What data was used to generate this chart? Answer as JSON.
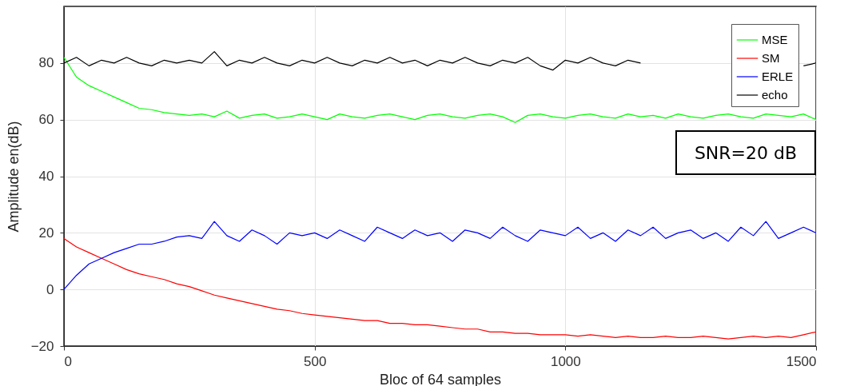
{
  "chart_data": {
    "type": "line",
    "xlabel": "Bloc of 64 samples",
    "ylabel": "Amplitude en(dB)",
    "x": [
      0,
      25,
      50,
      75,
      100,
      125,
      150,
      175,
      200,
      225,
      250,
      275,
      300,
      325,
      350,
      375,
      400,
      425,
      450,
      475,
      500,
      525,
      550,
      575,
      600,
      625,
      650,
      675,
      700,
      725,
      750,
      775,
      800,
      825,
      850,
      875,
      900,
      925,
      950,
      975,
      1000,
      1025,
      1050,
      1075,
      1100,
      1125,
      1150,
      1175,
      1200,
      1225,
      1250,
      1275,
      1300,
      1325,
      1350,
      1375,
      1400,
      1425,
      1450,
      1475,
      1500
    ],
    "series": [
      {
        "name": "MSE",
        "color": "#00ff00",
        "values": [
          82,
          75,
          72,
          70,
          68,
          66,
          64,
          63.5,
          62.5,
          62,
          61.5,
          62,
          61,
          63,
          60.5,
          61.5,
          62,
          60.5,
          61,
          62,
          61,
          60,
          62,
          61,
          60.5,
          61.5,
          62,
          61,
          60,
          61.5,
          62,
          61,
          60.5,
          61.5,
          62,
          61,
          59,
          61.5,
          62,
          61,
          60.5,
          61.5,
          62,
          61,
          60.5,
          62,
          61,
          61.5,
          60.5,
          62,
          61,
          60.5,
          61.5,
          62,
          61,
          60.5,
          62,
          61.5,
          61,
          62,
          60
        ]
      },
      {
        "name": "SM",
        "color": "#ff0000",
        "values": [
          18,
          15,
          13,
          11,
          9,
          7,
          5.5,
          4.5,
          3.5,
          2,
          1,
          -0.5,
          -2,
          -3,
          -4,
          -5,
          -6,
          -7,
          -7.5,
          -8.5,
          -9,
          -9.5,
          -10,
          -10.5,
          -11,
          -11,
          -12,
          -12,
          -12.5,
          -12.5,
          -13,
          -13.5,
          -14,
          -14,
          -15,
          -15,
          -15.5,
          -15.5,
          -16,
          -16,
          -16,
          -16.5,
          -16,
          -16.5,
          -17,
          -16.5,
          -17,
          -17,
          -16.5,
          -17,
          -17,
          -16.5,
          -17,
          -17.5,
          -17,
          -16.5,
          -17,
          -16.5,
          -17,
          -16,
          -15
        ]
      },
      {
        "name": "ERLE",
        "color": "#0000ff",
        "values": [
          0,
          5,
          9,
          11,
          13,
          14.5,
          16,
          16,
          17,
          18.5,
          19,
          18,
          24,
          19,
          17,
          21,
          19,
          16,
          20,
          19,
          20,
          18,
          21,
          19,
          17,
          22,
          20,
          18,
          21,
          19,
          20,
          17,
          21,
          20,
          18,
          22,
          19,
          17,
          21,
          20,
          19,
          22,
          18,
          20,
          17,
          21,
          19,
          22,
          18,
          20,
          21,
          18,
          20,
          17,
          22,
          19,
          24,
          18,
          20,
          22,
          20
        ]
      },
      {
        "name": "echo",
        "color": "#000000",
        "values": [
          80,
          82,
          79,
          81,
          80,
          82,
          80,
          79,
          81,
          80,
          81,
          80,
          84,
          79,
          81,
          80,
          82,
          80,
          79,
          81,
          80,
          82,
          80,
          79,
          81,
          80,
          82,
          80,
          81,
          79,
          81,
          80,
          82,
          80,
          79,
          81,
          80,
          82,
          79,
          77.5,
          81,
          80,
          82,
          80,
          79,
          81,
          80,
          null,
          null,
          null,
          null,
          null,
          null,
          null,
          null,
          null,
          null,
          null,
          null,
          79,
          80
        ]
      }
    ],
    "xlim": [
      0,
      1500
    ],
    "xticks": [
      0,
      500,
      1000,
      1500
    ],
    "ylim": [
      -20,
      100
    ],
    "yticks": [
      -20,
      0,
      20,
      40,
      60,
      80
    ],
    "grid": true,
    "legend": "top right",
    "marker": "none",
    "line_style": "solid",
    "annotations": [
      "SNR=20 dB"
    ]
  }
}
